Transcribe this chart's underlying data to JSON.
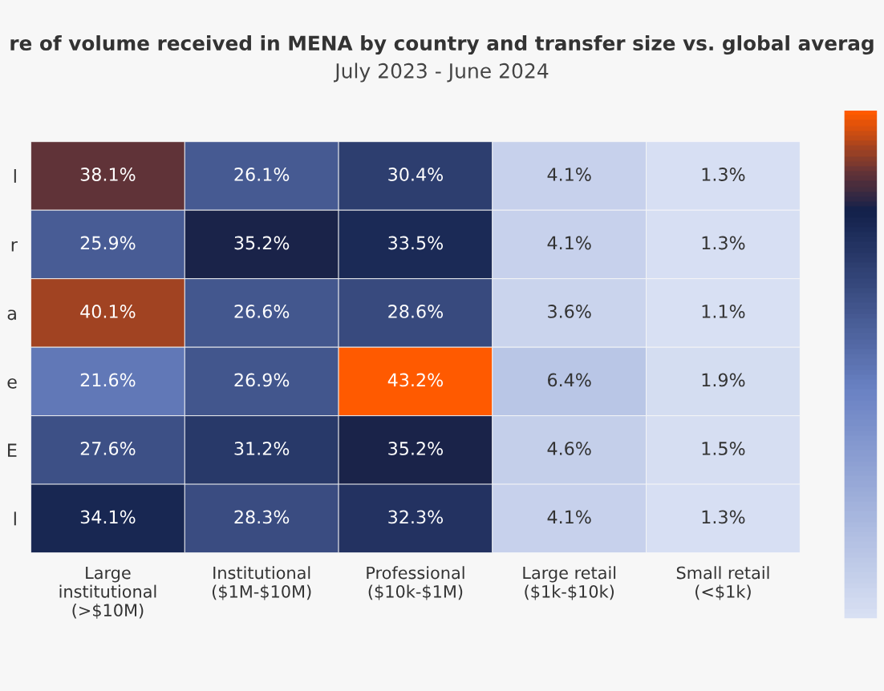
{
  "chart_data": {
    "type": "heatmap",
    "title": "re of volume received in MENA by country and transfer size vs. global averag",
    "subtitle": "July 2023 - June 2024",
    "categories": [
      "Large\ninstitutional\n(>$10M)",
      "Institutional\n($1M-$10M)",
      "Professional\n($10k-$1M)",
      "Large retail\n($1k-$10k)",
      "Small retail\n(<$1k)"
    ],
    "y_categories": [
      "l",
      "r",
      "a",
      "e",
      "E",
      "l"
    ],
    "cells": [
      [
        38.1,
        26.1,
        30.4,
        4.1,
        1.3
      ],
      [
        25.9,
        35.2,
        33.5,
        4.1,
        1.3
      ],
      [
        40.1,
        26.6,
        28.6,
        3.6,
        1.1
      ],
      [
        21.6,
        26.9,
        43.2,
        6.4,
        1.9
      ],
      [
        27.6,
        31.2,
        35.2,
        4.6,
        1.5
      ],
      [
        34.1,
        28.3,
        32.3,
        4.1,
        1.3
      ]
    ],
    "cell_labels": [
      [
        "38.1%",
        "26.1%",
        "30.4%",
        "4.1%",
        "1.3%"
      ],
      [
        "25.9%",
        "35.2%",
        "33.5%",
        "4.1%",
        "1.3%"
      ],
      [
        "40.1%",
        "26.6%",
        "28.6%",
        "3.6%",
        "1.1%"
      ],
      [
        "21.6%",
        "26.9%",
        "43.2%",
        "6.4%",
        "1.9%"
      ],
      [
        "27.6%",
        "31.2%",
        "35.2%",
        "4.6%",
        "1.5%"
      ],
      [
        "34.1%",
        "28.3%",
        "32.3%",
        "4.1%",
        "1.3%"
      ]
    ]
  }
}
